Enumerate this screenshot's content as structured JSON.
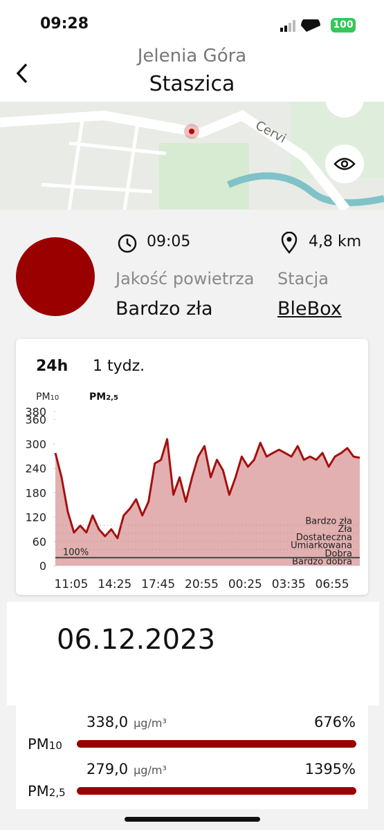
{
  "status": {
    "time": "09:28",
    "battery": "100"
  },
  "header": {
    "city": "Jelenia Góra",
    "station": "Staszica"
  },
  "map": {
    "street": "Cervi"
  },
  "info": {
    "time": "09:05",
    "distance": "4,8 km",
    "quality_label": "Jakość powietrza",
    "quality": "Bardzo zła",
    "station_label": "Stacja",
    "station": "BleBox"
  },
  "chart": {
    "type": "line",
    "tabs": [
      "24h",
      "1 tydz."
    ],
    "pollutants": [
      {
        "name": "PM",
        "sub": "10"
      },
      {
        "name": "PM",
        "sub": "2,5"
      }
    ],
    "categories": [
      null,
      null,
      null,
      "11:05",
      null,
      null,
      null,
      null,
      null,
      null,
      "14:25",
      null,
      null,
      null,
      null,
      null,
      null,
      "17:45",
      null,
      null,
      null,
      null,
      null,
      null,
      "20:55",
      null,
      null,
      null,
      null,
      null,
      null,
      "00:25",
      null,
      null,
      null,
      null,
      null,
      null,
      "03:35",
      null,
      null,
      null,
      null,
      null,
      null,
      "06:55",
      null,
      null,
      null,
      null
    ],
    "values": [
      278,
      218,
      133,
      82,
      99,
      82,
      124,
      90,
      73,
      90,
      68,
      124,
      141,
      164,
      124,
      158,
      252,
      261,
      312,
      175,
      218,
      158,
      218,
      269,
      295,
      218,
      261,
      235,
      175,
      218,
      269,
      244,
      261,
      303,
      269,
      278,
      286,
      278,
      269,
      295,
      261,
      269,
      261,
      278,
      244,
      269,
      278,
      290,
      269,
      266
    ],
    "color": "#a50f0f",
    "fill": "#e2b0b0",
    "ylim": [
      0,
      380
    ],
    "yticks": [
      0,
      60,
      120,
      180,
      240,
      300,
      360,
      380
    ],
    "thresholds": [
      {
        "label": "Bardzo zła",
        "value": 100
      },
      {
        "label": "Zła",
        "value": 80
      },
      {
        "label": "Dostateczna",
        "value": 60
      },
      {
        "label": "Umiarkowana",
        "value": 40
      },
      {
        "label": "Dobra",
        "value": 20
      },
      {
        "label": "Bardzo dobra",
        "value": 0
      }
    ],
    "norm": {
      "label": "100%",
      "value": 20
    }
  },
  "date": "06.12.2023",
  "measurements": [
    {
      "name": "PM",
      "sub": "10",
      "value": "338,0",
      "unit": "µg/m³",
      "percent": "676%"
    },
    {
      "name": "PM",
      "sub": "2,5",
      "value": "279,0",
      "unit": "µg/m³",
      "percent": "1395%"
    }
  ]
}
